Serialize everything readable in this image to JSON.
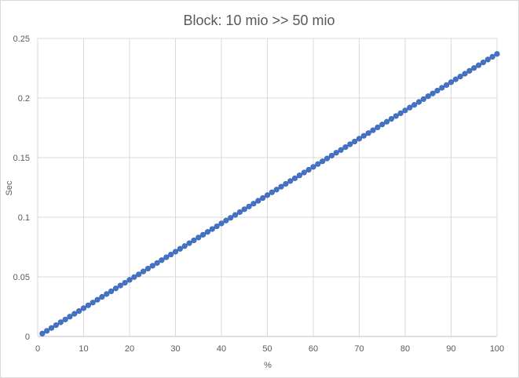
{
  "chart_data": {
    "type": "scatter",
    "title": "Block: 10 mio >> 50 mio",
    "xlabel": "%",
    "ylabel": "Sec",
    "xlim": [
      0,
      100
    ],
    "ylim": [
      0,
      0.25
    ],
    "x_ticks": [
      "0",
      "10",
      "20",
      "30",
      "40",
      "50",
      "60",
      "70",
      "80",
      "90",
      "100"
    ],
    "y_ticks": [
      "0",
      "0.05",
      "0.1",
      "0.15",
      "0.2",
      "0.25"
    ],
    "grid": true,
    "legend": "none",
    "marker_color": "#4472c4",
    "series": [
      {
        "x": [
          1,
          2,
          3,
          4,
          5,
          6,
          7,
          8,
          9,
          10,
          11,
          12,
          13,
          14,
          15,
          16,
          17,
          18,
          19,
          20,
          21,
          22,
          23,
          24,
          25,
          26,
          27,
          28,
          29,
          30,
          31,
          32,
          33,
          34,
          35,
          36,
          37,
          38,
          39,
          40,
          41,
          42,
          43,
          44,
          45,
          46,
          47,
          48,
          49,
          50,
          51,
          52,
          53,
          54,
          55,
          56,
          57,
          58,
          59,
          60,
          61,
          62,
          63,
          64,
          65,
          66,
          67,
          68,
          69,
          70,
          71,
          72,
          73,
          74,
          75,
          76,
          77,
          78,
          79,
          80,
          81,
          82,
          83,
          84,
          85,
          86,
          87,
          88,
          89,
          90,
          91,
          92,
          93,
          94,
          95,
          96,
          97,
          98,
          99,
          100
        ],
        "y": [
          0.0024,
          0.0047,
          0.0071,
          0.0095,
          0.0119,
          0.0142,
          0.0166,
          0.019,
          0.0213,
          0.0237,
          0.0261,
          0.0284,
          0.0308,
          0.0332,
          0.0356,
          0.0379,
          0.0403,
          0.0427,
          0.045,
          0.0474,
          0.0498,
          0.0521,
          0.0545,
          0.0569,
          0.0593,
          0.0616,
          0.064,
          0.0664,
          0.0687,
          0.0711,
          0.0735,
          0.0758,
          0.0782,
          0.0806,
          0.083,
          0.0853,
          0.0877,
          0.0901,
          0.0924,
          0.0948,
          0.0972,
          0.0995,
          0.1019,
          0.1043,
          0.1067,
          0.109,
          0.1114,
          0.1138,
          0.1161,
          0.1185,
          0.1209,
          0.1232,
          0.1256,
          0.128,
          0.1304,
          0.1327,
          0.1351,
          0.1375,
          0.1398,
          0.1422,
          0.1446,
          0.1469,
          0.1493,
          0.1517,
          0.1541,
          0.1564,
          0.1588,
          0.1612,
          0.1635,
          0.1659,
          0.1683,
          0.1706,
          0.173,
          0.1754,
          0.1778,
          0.1801,
          0.1825,
          0.1849,
          0.1872,
          0.1896,
          0.192,
          0.1943,
          0.1967,
          0.1991,
          0.2015,
          0.2038,
          0.2062,
          0.2086,
          0.2109,
          0.2133,
          0.2157,
          0.218,
          0.2204,
          0.2228,
          0.2252,
          0.2275,
          0.2299,
          0.2323,
          0.2346,
          0.237
        ]
      }
    ]
  }
}
